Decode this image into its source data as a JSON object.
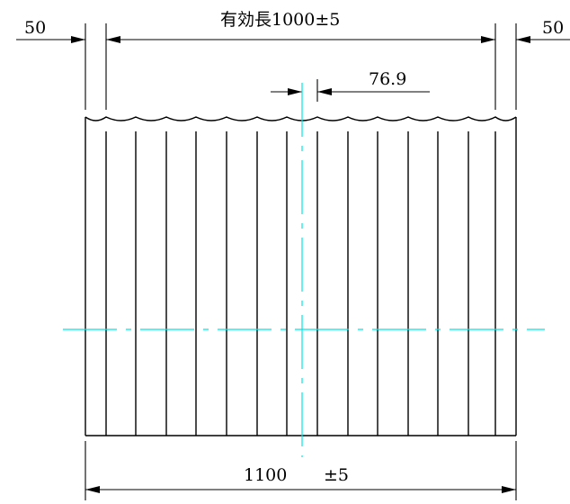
{
  "drawing": {
    "colors": {
      "line": "#000000",
      "centerline": "#00e5e5",
      "background": "#ffffff"
    },
    "dimensions": {
      "left_overlap": "50",
      "right_overlap": "50",
      "effective_length": "有効長1000±5",
      "pitch": "76.9",
      "total_width_value": "1100",
      "total_width_tolerance": "±5"
    }
  }
}
